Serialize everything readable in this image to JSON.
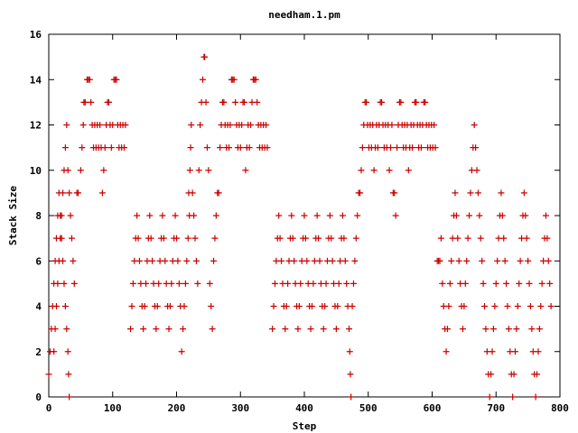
{
  "chart_data": {
    "type": "scatter",
    "title": "needham.1.pm",
    "xlabel": "Step",
    "ylabel": "Stack Size",
    "xlim": [
      0,
      800
    ],
    "ylim": [
      0,
      16
    ],
    "xticks": [
      0,
      100,
      200,
      300,
      400,
      500,
      600,
      700,
      800
    ],
    "yticks": [
      0,
      2,
      4,
      6,
      8,
      10,
      12,
      14,
      16
    ],
    "grid": false,
    "legend": "none",
    "marker": "plus",
    "color": "#cc0000",
    "points": [
      [
        0,
        1
      ],
      [
        2,
        2
      ],
      [
        4,
        3
      ],
      [
        6,
        4
      ],
      [
        8,
        5
      ],
      [
        10,
        6
      ],
      [
        12,
        7
      ],
      [
        14,
        8
      ],
      [
        16,
        9
      ],
      [
        18,
        8
      ],
      [
        20,
        7
      ],
      [
        22,
        6
      ],
      [
        24,
        5
      ],
      [
        26,
        4
      ],
      [
        28,
        3
      ],
      [
        30,
        2
      ],
      [
        31,
        1
      ],
      [
        32,
        0
      ],
      [
        8,
        2
      ],
      [
        10,
        3
      ],
      [
        12,
        4
      ],
      [
        14,
        5
      ],
      [
        16,
        6
      ],
      [
        18,
        7
      ],
      [
        20,
        8
      ],
      [
        22,
        9
      ],
      [
        24,
        10
      ],
      [
        26,
        11
      ],
      [
        28,
        12
      ],
      [
        30,
        10
      ],
      [
        32,
        9
      ],
      [
        34,
        8
      ],
      [
        36,
        7
      ],
      [
        38,
        6
      ],
      [
        40,
        5
      ],
      [
        44,
        9
      ],
      [
        46,
        9
      ],
      [
        50,
        10
      ],
      [
        52,
        11
      ],
      [
        54,
        12
      ],
      [
        55,
        13
      ],
      [
        57,
        13
      ],
      [
        60,
        14
      ],
      [
        62,
        14
      ],
      [
        64,
        14
      ],
      [
        66,
        13
      ],
      [
        68,
        12
      ],
      [
        70,
        11
      ],
      [
        72,
        12
      ],
      [
        74,
        11
      ],
      [
        76,
        12
      ],
      [
        78,
        11
      ],
      [
        80,
        12
      ],
      [
        82,
        11
      ],
      [
        84,
        9
      ],
      [
        86,
        10
      ],
      [
        88,
        11
      ],
      [
        90,
        12
      ],
      [
        92,
        13
      ],
      [
        94,
        13
      ],
      [
        96,
        12
      ],
      [
        98,
        11
      ],
      [
        100,
        12
      ],
      [
        102,
        14
      ],
      [
        104,
        14
      ],
      [
        106,
        14
      ],
      [
        108,
        12
      ],
      [
        110,
        11
      ],
      [
        112,
        12
      ],
      [
        114,
        11
      ],
      [
        116,
        12
      ],
      [
        118,
        11
      ],
      [
        120,
        12
      ],
      [
        128,
        3
      ],
      [
        130,
        4
      ],
      [
        132,
        5
      ],
      [
        134,
        6
      ],
      [
        136,
        7
      ],
      [
        138,
        8
      ],
      [
        140,
        7
      ],
      [
        142,
        6
      ],
      [
        144,
        5
      ],
      [
        146,
        4
      ],
      [
        148,
        3
      ],
      [
        150,
        4
      ],
      [
        152,
        5
      ],
      [
        154,
        6
      ],
      [
        156,
        7
      ],
      [
        158,
        8
      ],
      [
        160,
        7
      ],
      [
        162,
        6
      ],
      [
        164,
        5
      ],
      [
        166,
        4
      ],
      [
        168,
        3
      ],
      [
        170,
        4
      ],
      [
        172,
        5
      ],
      [
        174,
        6
      ],
      [
        176,
        7
      ],
      [
        178,
        8
      ],
      [
        180,
        7
      ],
      [
        182,
        6
      ],
      [
        184,
        5
      ],
      [
        186,
        4
      ],
      [
        188,
        3
      ],
      [
        190,
        4
      ],
      [
        192,
        5
      ],
      [
        194,
        6
      ],
      [
        196,
        7
      ],
      [
        198,
        8
      ],
      [
        200,
        7
      ],
      [
        202,
        6
      ],
      [
        204,
        5
      ],
      [
        206,
        4
      ],
      [
        208,
        2
      ],
      [
        210,
        3
      ],
      [
        212,
        4
      ],
      [
        214,
        5
      ],
      [
        216,
        6
      ],
      [
        218,
        7
      ],
      [
        219,
        9
      ],
      [
        220,
        8
      ],
      [
        221,
        10
      ],
      [
        222,
        11
      ],
      [
        223,
        12
      ],
      [
        225,
        9
      ],
      [
        227,
        8
      ],
      [
        229,
        7
      ],
      [
        231,
        6
      ],
      [
        233,
        5
      ],
      [
        235,
        10
      ],
      [
        237,
        12
      ],
      [
        239,
        13
      ],
      [
        241,
        14
      ],
      [
        243,
        15
      ],
      [
        244,
        15
      ],
      [
        246,
        13
      ],
      [
        248,
        11
      ],
      [
        250,
        10
      ],
      [
        252,
        5
      ],
      [
        254,
        4
      ],
      [
        256,
        3
      ],
      [
        258,
        6
      ],
      [
        260,
        7
      ],
      [
        262,
        8
      ],
      [
        264,
        9
      ],
      [
        266,
        9
      ],
      [
        268,
        11
      ],
      [
        270,
        12
      ],
      [
        272,
        13
      ],
      [
        274,
        13
      ],
      [
        276,
        12
      ],
      [
        278,
        11
      ],
      [
        280,
        12
      ],
      [
        282,
        11
      ],
      [
        284,
        12
      ],
      [
        286,
        14
      ],
      [
        288,
        14
      ],
      [
        290,
        14
      ],
      [
        292,
        13
      ],
      [
        294,
        12
      ],
      [
        296,
        11
      ],
      [
        298,
        12
      ],
      [
        300,
        11
      ],
      [
        302,
        12
      ],
      [
        304,
        13
      ],
      [
        306,
        13
      ],
      [
        308,
        10
      ],
      [
        310,
        11
      ],
      [
        312,
        12
      ],
      [
        314,
        11
      ],
      [
        316,
        12
      ],
      [
        318,
        13
      ],
      [
        320,
        14
      ],
      [
        322,
        14
      ],
      [
        324,
        14
      ],
      [
        326,
        13
      ],
      [
        328,
        12
      ],
      [
        330,
        11
      ],
      [
        332,
        12
      ],
      [
        334,
        11
      ],
      [
        336,
        12
      ],
      [
        338,
        11
      ],
      [
        340,
        12
      ],
      [
        342,
        11
      ],
      [
        350,
        3
      ],
      [
        352,
        4
      ],
      [
        354,
        5
      ],
      [
        356,
        6
      ],
      [
        358,
        7
      ],
      [
        360,
        8
      ],
      [
        362,
        7
      ],
      [
        364,
        6
      ],
      [
        366,
        5
      ],
      [
        368,
        4
      ],
      [
        370,
        3
      ],
      [
        372,
        4
      ],
      [
        374,
        5
      ],
      [
        376,
        6
      ],
      [
        378,
        7
      ],
      [
        380,
        8
      ],
      [
        382,
        7
      ],
      [
        384,
        6
      ],
      [
        386,
        5
      ],
      [
        388,
        4
      ],
      [
        390,
        3
      ],
      [
        392,
        4
      ],
      [
        394,
        5
      ],
      [
        396,
        6
      ],
      [
        398,
        7
      ],
      [
        400,
        8
      ],
      [
        402,
        7
      ],
      [
        404,
        6
      ],
      [
        406,
        5
      ],
      [
        408,
        4
      ],
      [
        410,
        3
      ],
      [
        412,
        4
      ],
      [
        414,
        5
      ],
      [
        416,
        6
      ],
      [
        418,
        7
      ],
      [
        420,
        8
      ],
      [
        422,
        7
      ],
      [
        424,
        6
      ],
      [
        426,
        5
      ],
      [
        428,
        4
      ],
      [
        430,
        3
      ],
      [
        432,
        4
      ],
      [
        434,
        5
      ],
      [
        436,
        6
      ],
      [
        438,
        7
      ],
      [
        440,
        8
      ],
      [
        442,
        7
      ],
      [
        444,
        6
      ],
      [
        446,
        5
      ],
      [
        448,
        4
      ],
      [
        450,
        3
      ],
      [
        452,
        4
      ],
      [
        454,
        5
      ],
      [
        456,
        6
      ],
      [
        458,
        7
      ],
      [
        460,
        8
      ],
      [
        462,
        7
      ],
      [
        464,
        6
      ],
      [
        466,
        5
      ],
      [
        468,
        4
      ],
      [
        470,
        3
      ],
      [
        471,
        2
      ],
      [
        472,
        1
      ],
      [
        473,
        0
      ],
      [
        475,
        4
      ],
      [
        477,
        5
      ],
      [
        479,
        6
      ],
      [
        481,
        7
      ],
      [
        483,
        8
      ],
      [
        485,
        9
      ],
      [
        487,
        9
      ],
      [
        489,
        10
      ],
      [
        491,
        11
      ],
      [
        493,
        12
      ],
      [
        495,
        13
      ],
      [
        497,
        13
      ],
      [
        499,
        12
      ],
      [
        501,
        11
      ],
      [
        503,
        12
      ],
      [
        505,
        11
      ],
      [
        507,
        12
      ],
      [
        509,
        10
      ],
      [
        511,
        11
      ],
      [
        513,
        12
      ],
      [
        515,
        11
      ],
      [
        517,
        12
      ],
      [
        519,
        13
      ],
      [
        521,
        13
      ],
      [
        523,
        12
      ],
      [
        525,
        11
      ],
      [
        527,
        12
      ],
      [
        529,
        11
      ],
      [
        531,
        12
      ],
      [
        533,
        10
      ],
      [
        535,
        11
      ],
      [
        537,
        12
      ],
      [
        539,
        9
      ],
      [
        541,
        9
      ],
      [
        543,
        8
      ],
      [
        545,
        11
      ],
      [
        547,
        12
      ],
      [
        549,
        13
      ],
      [
        551,
        13
      ],
      [
        553,
        12
      ],
      [
        555,
        11
      ],
      [
        557,
        12
      ],
      [
        559,
        11
      ],
      [
        561,
        12
      ],
      [
        563,
        10
      ],
      [
        565,
        11
      ],
      [
        567,
        12
      ],
      [
        569,
        11
      ],
      [
        571,
        12
      ],
      [
        573,
        13
      ],
      [
        575,
        13
      ],
      [
        577,
        12
      ],
      [
        579,
        11
      ],
      [
        581,
        12
      ],
      [
        583,
        11
      ],
      [
        585,
        12
      ],
      [
        587,
        13
      ],
      [
        589,
        13
      ],
      [
        591,
        12
      ],
      [
        593,
        11
      ],
      [
        595,
        12
      ],
      [
        597,
        11
      ],
      [
        599,
        12
      ],
      [
        601,
        11
      ],
      [
        603,
        12
      ],
      [
        605,
        11
      ],
      [
        608,
        6
      ],
      [
        610,
        6
      ],
      [
        612,
        6
      ],
      [
        614,
        7
      ],
      [
        616,
        5
      ],
      [
        618,
        4
      ],
      [
        620,
        3
      ],
      [
        622,
        2
      ],
      [
        624,
        3
      ],
      [
        626,
        4
      ],
      [
        628,
        5
      ],
      [
        630,
        6
      ],
      [
        632,
        7
      ],
      [
        634,
        8
      ],
      [
        636,
        9
      ],
      [
        638,
        8
      ],
      [
        640,
        7
      ],
      [
        642,
        6
      ],
      [
        644,
        5
      ],
      [
        646,
        4
      ],
      [
        648,
        3
      ],
      [
        650,
        4
      ],
      [
        652,
        5
      ],
      [
        654,
        6
      ],
      [
        656,
        7
      ],
      [
        658,
        8
      ],
      [
        660,
        9
      ],
      [
        662,
        10
      ],
      [
        664,
        11
      ],
      [
        666,
        12
      ],
      [
        668,
        11
      ],
      [
        670,
        10
      ],
      [
        672,
        9
      ],
      [
        674,
        8
      ],
      [
        676,
        7
      ],
      [
        678,
        6
      ],
      [
        680,
        5
      ],
      [
        682,
        4
      ],
      [
        684,
        3
      ],
      [
        686,
        2
      ],
      [
        688,
        1
      ],
      [
        690,
        0
      ],
      [
        692,
        1
      ],
      [
        694,
        2
      ],
      [
        696,
        3
      ],
      [
        698,
        4
      ],
      [
        700,
        5
      ],
      [
        702,
        6
      ],
      [
        704,
        7
      ],
      [
        706,
        8
      ],
      [
        708,
        9
      ],
      [
        710,
        8
      ],
      [
        712,
        7
      ],
      [
        714,
        6
      ],
      [
        716,
        5
      ],
      [
        718,
        4
      ],
      [
        720,
        3
      ],
      [
        722,
        2
      ],
      [
        724,
        1
      ],
      [
        726,
        0
      ],
      [
        728,
        1
      ],
      [
        730,
        2
      ],
      [
        732,
        3
      ],
      [
        734,
        4
      ],
      [
        736,
        5
      ],
      [
        738,
        6
      ],
      [
        740,
        7
      ],
      [
        742,
        8
      ],
      [
        744,
        9
      ],
      [
        746,
        8
      ],
      [
        748,
        7
      ],
      [
        750,
        6
      ],
      [
        752,
        5
      ],
      [
        754,
        4
      ],
      [
        756,
        3
      ],
      [
        758,
        2
      ],
      [
        760,
        1
      ],
      [
        762,
        0
      ],
      [
        764,
        1
      ],
      [
        766,
        2
      ],
      [
        768,
        3
      ],
      [
        770,
        4
      ],
      [
        772,
        5
      ],
      [
        774,
        6
      ],
      [
        776,
        7
      ],
      [
        778,
        8
      ],
      [
        780,
        7
      ],
      [
        782,
        6
      ],
      [
        784,
        5
      ],
      [
        786,
        4
      ]
    ]
  }
}
